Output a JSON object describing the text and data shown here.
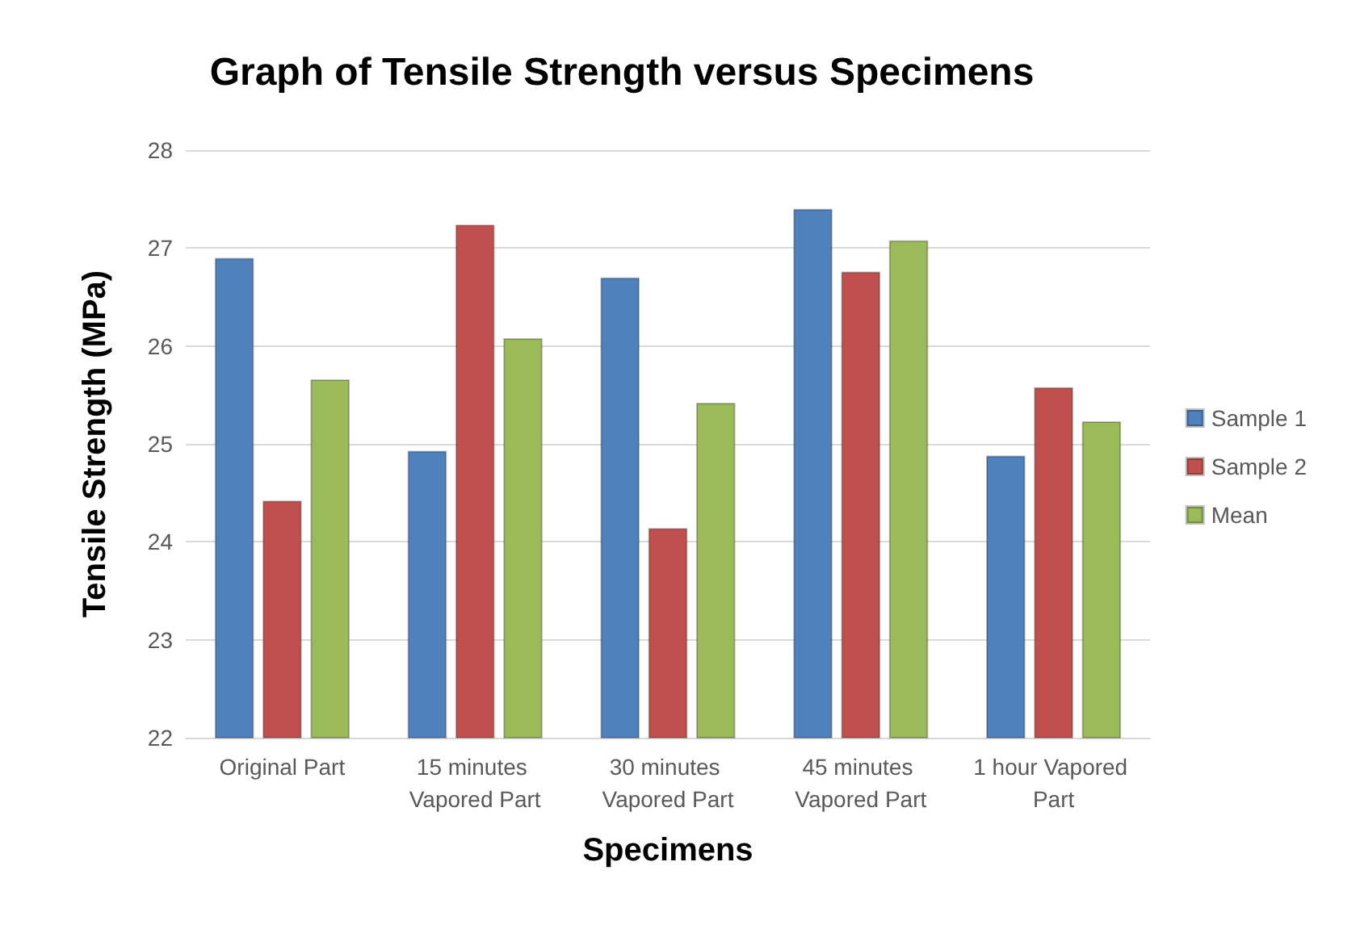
{
  "chart_data": {
    "type": "bar",
    "title": "Graph of Tensile Strength versus Specimens",
    "xlabel": "Specimens",
    "ylabel": "Tensile Strength (MPa)",
    "categories": [
      "Original Part",
      "15 minutes Vapored Part",
      "30 minutes Vapored Part",
      "45 minutes Vapored Part",
      "1 hour Vapored Part"
    ],
    "series": [
      {
        "name": "Sample 1",
        "color": "#4f81bd",
        "values": [
          26.9,
          24.93,
          26.7,
          27.4,
          24.88
        ]
      },
      {
        "name": "Sample 2",
        "color": "#c0504d",
        "values": [
          24.42,
          27.24,
          24.14,
          26.76,
          25.58
        ]
      },
      {
        "name": "Mean",
        "color": "#9bbb59",
        "values": [
          25.66,
          26.08,
          25.42,
          27.08,
          25.23
        ]
      }
    ],
    "ylim": [
      22,
      28
    ],
    "yticks": [
      22,
      23,
      24,
      25,
      26,
      27,
      28
    ],
    "grid": "y",
    "legend": "right"
  }
}
